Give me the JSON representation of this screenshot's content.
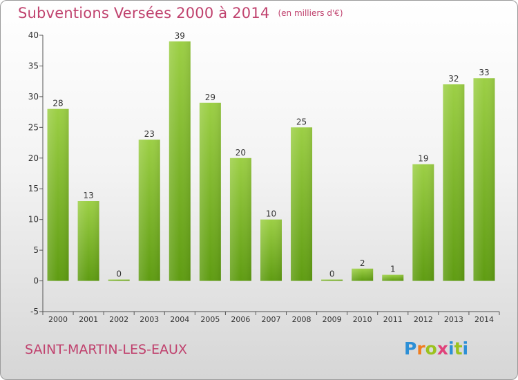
{
  "title": "Subventions Versées 2000 à 2014",
  "unit": "(en milliers d'€)",
  "commune": "SAINT-MARTIN-LES-EAUX",
  "logo": {
    "text": "Proxiti",
    "colors": [
      "#2c8fd6",
      "#f07d1e",
      "#9bc21e",
      "#e0417a",
      "#2c8fd6",
      "#9bc21e",
      "#2c8fd6"
    ]
  },
  "chart_data": {
    "type": "bar",
    "categories": [
      "2000",
      "2001",
      "2002",
      "2003",
      "2004",
      "2005",
      "2006",
      "2007",
      "2008",
      "2009",
      "2010",
      "2011",
      "2012",
      "2013",
      "2014"
    ],
    "values": [
      28,
      13,
      0,
      23,
      39,
      29,
      20,
      10,
      25,
      0,
      2,
      1,
      19,
      32,
      33
    ],
    "ylim": [
      -5,
      40
    ],
    "yticks": [
      -5,
      0,
      5,
      10,
      15,
      20,
      25,
      30,
      35,
      40
    ],
    "grid": false,
    "bar_color": "#7cbd2b"
  }
}
